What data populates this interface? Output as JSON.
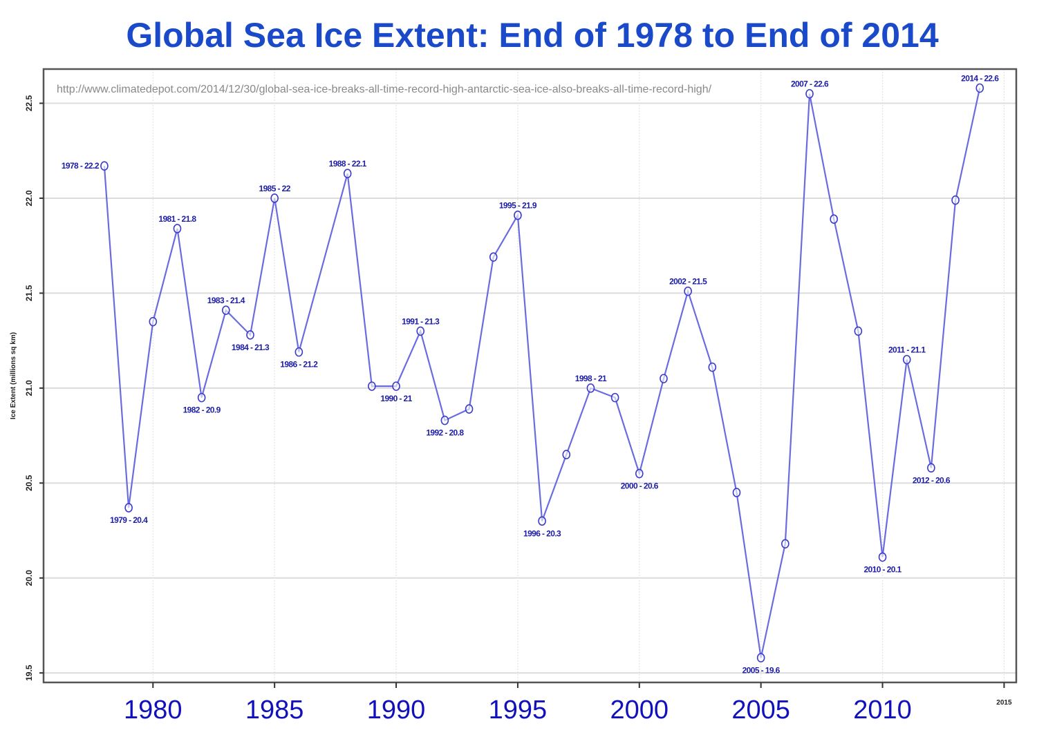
{
  "chart_data": {
    "type": "line",
    "title": "Global Sea Ice Extent: End of 1978 to End of 2014",
    "source_note": "http://www.climatedepot.com/2014/12/30/global-sea-ice-breaks-all-time-record-high-antarctic-sea-ice-also-breaks-all-time-record-high/",
    "xlabel": "",
    "ylabel": "Ice Extent (millions sq km)",
    "xlim": [
      1975.5,
      2015.5
    ],
    "ylim": [
      19.45,
      22.68
    ],
    "grid": true,
    "y_ticks": [
      {
        "value": 19.5,
        "label": "19.5"
      },
      {
        "value": 20.0,
        "label": "20.0"
      },
      {
        "value": 20.5,
        "label": "20.5"
      },
      {
        "value": 21.0,
        "label": "21.0"
      },
      {
        "value": 21.5,
        "label": "21.5"
      },
      {
        "value": 22.0,
        "label": "22.0"
      },
      {
        "value": 22.5,
        "label": "22.5"
      }
    ],
    "x_ticks": [
      {
        "value": 1980,
        "label": "1980",
        "style": "large"
      },
      {
        "value": 1985,
        "label": "1985",
        "style": "large"
      },
      {
        "value": 1990,
        "label": "1990",
        "style": "large"
      },
      {
        "value": 1995,
        "label": "1995",
        "style": "large"
      },
      {
        "value": 2000,
        "label": "2000",
        "style": "large"
      },
      {
        "value": 2005,
        "label": "2005",
        "style": "large"
      },
      {
        "value": 2010,
        "label": "2010",
        "style": "large"
      },
      {
        "value": 2015,
        "label": "2015",
        "style": "small"
      }
    ],
    "series": [
      {
        "name": "Global Sea Ice Extent",
        "color": "#6b6be0",
        "points": [
          {
            "x": 1978,
            "y": 22.17,
            "label": "1978 - 22.2",
            "label_pos": "left"
          },
          {
            "x": 1979,
            "y": 20.37,
            "label": "1979 - 20.4",
            "label_pos": "below"
          },
          {
            "x": 1980,
            "y": 21.35
          },
          {
            "x": 1981,
            "y": 21.84,
            "label": "1981 - 21.8",
            "label_pos": "above"
          },
          {
            "x": 1982,
            "y": 20.95,
            "label": "1982 - 20.9",
            "label_pos": "below"
          },
          {
            "x": 1983,
            "y": 21.41,
            "label": "1983 - 21.4",
            "label_pos": "above"
          },
          {
            "x": 1984,
            "y": 21.28,
            "label": "1984 - 21.3",
            "label_pos": "below"
          },
          {
            "x": 1985,
            "y": 22.0,
            "label": "1985 - 22",
            "label_pos": "above"
          },
          {
            "x": 1986,
            "y": 21.19,
            "label": "1986 - 21.2",
            "label_pos": "below"
          },
          {
            "x": 1988,
            "y": 22.13,
            "label": "1988 - 22.1",
            "label_pos": "above"
          },
          {
            "x": 1989,
            "y": 21.01
          },
          {
            "x": 1990,
            "y": 21.01,
            "label": "1990 - 21",
            "label_pos": "below"
          },
          {
            "x": 1991,
            "y": 21.3,
            "label": "1991 - 21.3",
            "label_pos": "above"
          },
          {
            "x": 1992,
            "y": 20.83,
            "label": "1992 - 20.8",
            "label_pos": "below"
          },
          {
            "x": 1993,
            "y": 20.89
          },
          {
            "x": 1994,
            "y": 21.69
          },
          {
            "x": 1995,
            "y": 21.91,
            "label": "1995 - 21.9",
            "label_pos": "above"
          },
          {
            "x": 1996,
            "y": 20.3,
            "label": "1996 - 20.3",
            "label_pos": "below"
          },
          {
            "x": 1997,
            "y": 20.65
          },
          {
            "x": 1998,
            "y": 21.0,
            "label": "1998 - 21",
            "label_pos": "above"
          },
          {
            "x": 1999,
            "y": 20.95
          },
          {
            "x": 2000,
            "y": 20.55,
            "label": "2000 - 20.6",
            "label_pos": "below"
          },
          {
            "x": 2001,
            "y": 21.05
          },
          {
            "x": 2002,
            "y": 21.51,
            "label": "2002 - 21.5",
            "label_pos": "above"
          },
          {
            "x": 2003,
            "y": 21.11
          },
          {
            "x": 2004,
            "y": 20.45
          },
          {
            "x": 2005,
            "y": 19.58,
            "label": "2005 - 19.6",
            "label_pos": "below"
          },
          {
            "x": 2006,
            "y": 20.18
          },
          {
            "x": 2007,
            "y": 22.55,
            "label": "2007 - 22.6",
            "label_pos": "above"
          },
          {
            "x": 2008,
            "y": 21.89
          },
          {
            "x": 2009,
            "y": 21.3
          },
          {
            "x": 2010,
            "y": 20.11,
            "label": "2010 - 20.1",
            "label_pos": "below"
          },
          {
            "x": 2011,
            "y": 21.15,
            "label": "2011 - 21.1",
            "label_pos": "above"
          },
          {
            "x": 2012,
            "y": 20.58,
            "label": "2012 - 20.6",
            "label_pos": "below"
          },
          {
            "x": 2013,
            "y": 21.99
          },
          {
            "x": 2014,
            "y": 22.58,
            "label": "2014 - 22.6",
            "label_pos": "above"
          }
        ]
      }
    ],
    "colors": {
      "title": "#1a49c9",
      "x_tick_labels": "#1111bb",
      "point_labels": "#1c1ca8",
      "url": "#888888"
    }
  }
}
